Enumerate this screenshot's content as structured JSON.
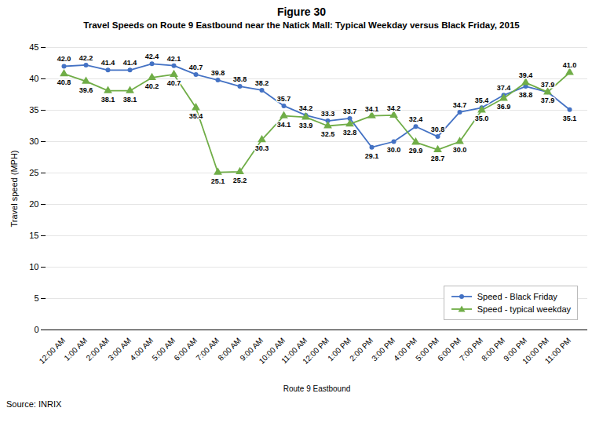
{
  "chart_data": {
    "type": "line",
    "title": "Figure 30",
    "subtitle": "Travel Speeds on Route 9 Eastbound near the Natick Mall: Typical Weekday versus Black Friday, 2015",
    "xlabel": "Route 9 Eastbound",
    "ylabel": "Travel speed (MPH)",
    "caption": "Source: INRIX",
    "categories": [
      "12:00 AM",
      "1:00 AM",
      "2:00 AM",
      "3:00 AM",
      "4:00 AM",
      "5:00 AM",
      "6:00 AM",
      "7:00 AM",
      "8:00 AM",
      "9:00 AM",
      "10:00 AM",
      "11:00 AM",
      "12:00 PM",
      "1:00 PM",
      "2:00 PM",
      "3:00 PM",
      "4:00 PM",
      "5:00 PM",
      "6:00 PM",
      "7:00 PM",
      "8:00 PM",
      "9:00 PM",
      "10:00 PM",
      "11:00 PM"
    ],
    "series": [
      {
        "name": "Speed - Black Friday",
        "color": "#4472C4",
        "marker": "circle",
        "values": [
          42.0,
          42.2,
          41.4,
          41.4,
          42.4,
          42.1,
          40.7,
          39.8,
          38.8,
          38.2,
          35.7,
          34.2,
          33.3,
          33.7,
          29.1,
          30.0,
          32.4,
          30.8,
          34.7,
          35.4,
          37.4,
          38.8,
          37.9,
          35.1
        ],
        "value_labels": [
          "42.0",
          "42.2",
          "41.4",
          "41.4",
          "42.4",
          "42.1",
          "40.7",
          "39.8",
          "38.8",
          "38.2",
          "35.7",
          "34.2",
          "33.3",
          "33.7",
          "29.1",
          "30.0",
          "32.4",
          "30.8",
          "34.7",
          "35.4",
          "37.4",
          "38.8",
          "37.9",
          "35.1"
        ]
      },
      {
        "name": "Speed - typical weekday",
        "color": "#70AD47",
        "marker": "triangle",
        "values": [
          40.8,
          39.6,
          38.1,
          38.1,
          40.2,
          40.7,
          35.4,
          25.1,
          25.2,
          30.3,
          34.1,
          33.9,
          32.5,
          32.8,
          34.1,
          34.2,
          29.9,
          28.7,
          30.0,
          35.0,
          36.9,
          39.4,
          37.9,
          41.0
        ],
        "value_labels": [
          "40.8",
          "39.6",
          "38.1",
          "38.1",
          "40.2",
          "40.7",
          "35.4",
          "25.1",
          "25.2",
          "30.3",
          "34.1",
          "33.9",
          "32.5",
          "32.8",
          "34.1",
          "34.2",
          "29.9",
          "28.7",
          "30.0",
          "35.0",
          "36.9",
          "39.4",
          "37.9",
          "41.0"
        ]
      }
    ],
    "ylim": [
      0,
      45
    ],
    "yticks": [
      0,
      5,
      10,
      15,
      20,
      25,
      30,
      35,
      40,
      45
    ],
    "grid": true,
    "legend": "lower right",
    "data_labels": true
  }
}
